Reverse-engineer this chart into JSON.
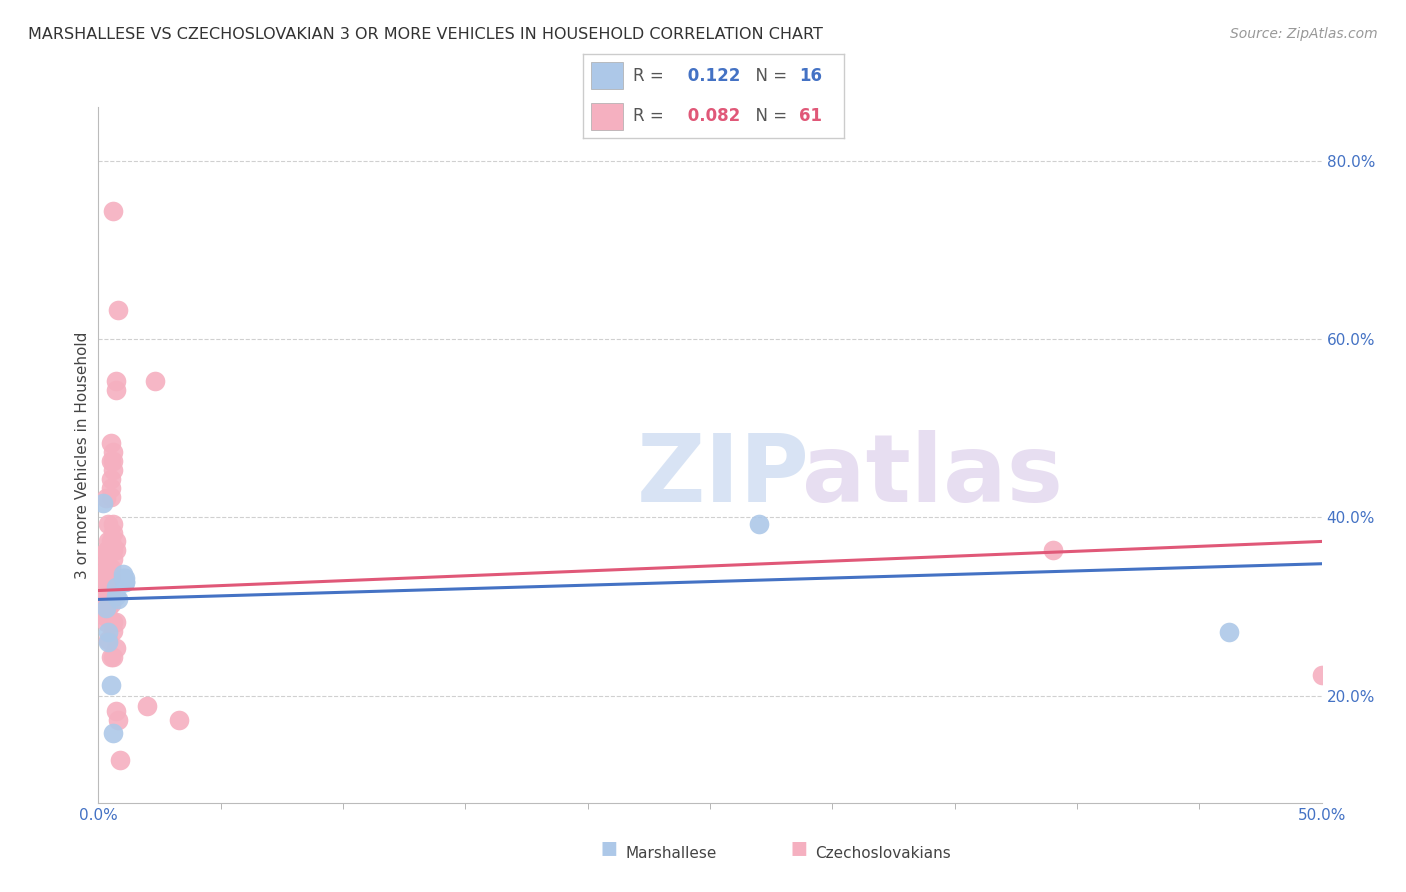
{
  "title": "MARSHALLESE VS CZECHOSLOVAKIAN 3 OR MORE VEHICLES IN HOUSEHOLD CORRELATION CHART",
  "source": "Source: ZipAtlas.com",
  "ylabel": "3 or more Vehicles in Household",
  "xlim": [
    0.0,
    0.5
  ],
  "ylim": [
    0.08,
    0.86
  ],
  "yticks_right": [
    0.2,
    0.4,
    0.6,
    0.8
  ],
  "yticklabels_right": [
    "20.0%",
    "40.0%",
    "60.0%",
    "80.0%"
  ],
  "marshallese_color": "#adc8e8",
  "czechoslovakian_color": "#f5b0c0",
  "marshallese_line_color": "#4472c4",
  "czechoslovakian_line_color": "#e05878",
  "grid_color": "#d0d0d0",
  "bg_color": "#ffffff",
  "legend_r1": "R = ",
  "legend_v1": " 0.122",
  "legend_n1": "  N = ",
  "legend_nv1": "16",
  "legend_r2": "R = ",
  "legend_v2": " 0.082",
  "legend_n2": "  N = ",
  "legend_nv2": "61",
  "marshallese_points": [
    [
      0.002,
      0.416
    ],
    [
      0.003,
      0.298
    ],
    [
      0.004,
      0.272
    ],
    [
      0.004,
      0.26
    ],
    [
      0.005,
      0.212
    ],
    [
      0.006,
      0.158
    ],
    [
      0.007,
      0.322
    ],
    [
      0.007,
      0.312
    ],
    [
      0.008,
      0.308
    ],
    [
      0.01,
      0.337
    ],
    [
      0.01,
      0.332
    ],
    [
      0.011,
      0.332
    ],
    [
      0.011,
      0.327
    ],
    [
      0.011,
      0.327
    ],
    [
      0.27,
      0.392
    ],
    [
      0.462,
      0.272
    ]
  ],
  "czechoslovakian_points": [
    [
      0.002,
      0.358
    ],
    [
      0.002,
      0.338
    ],
    [
      0.002,
      0.333
    ],
    [
      0.002,
      0.313
    ],
    [
      0.002,
      0.303
    ],
    [
      0.003,
      0.422
    ],
    [
      0.003,
      0.362
    ],
    [
      0.003,
      0.348
    ],
    [
      0.003,
      0.338
    ],
    [
      0.003,
      0.323
    ],
    [
      0.003,
      0.313
    ],
    [
      0.003,
      0.293
    ],
    [
      0.003,
      0.288
    ],
    [
      0.003,
      0.283
    ],
    [
      0.004,
      0.393
    ],
    [
      0.004,
      0.373
    ],
    [
      0.004,
      0.363
    ],
    [
      0.004,
      0.358
    ],
    [
      0.004,
      0.343
    ],
    [
      0.004,
      0.333
    ],
    [
      0.004,
      0.313
    ],
    [
      0.004,
      0.308
    ],
    [
      0.004,
      0.298
    ],
    [
      0.004,
      0.263
    ],
    [
      0.005,
      0.483
    ],
    [
      0.005,
      0.463
    ],
    [
      0.005,
      0.443
    ],
    [
      0.005,
      0.433
    ],
    [
      0.005,
      0.423
    ],
    [
      0.005,
      0.373
    ],
    [
      0.005,
      0.343
    ],
    [
      0.005,
      0.333
    ],
    [
      0.005,
      0.313
    ],
    [
      0.005,
      0.303
    ],
    [
      0.005,
      0.243
    ],
    [
      0.006,
      0.743
    ],
    [
      0.006,
      0.473
    ],
    [
      0.006,
      0.463
    ],
    [
      0.006,
      0.453
    ],
    [
      0.006,
      0.393
    ],
    [
      0.006,
      0.383
    ],
    [
      0.006,
      0.363
    ],
    [
      0.006,
      0.353
    ],
    [
      0.006,
      0.283
    ],
    [
      0.006,
      0.273
    ],
    [
      0.006,
      0.243
    ],
    [
      0.007,
      0.553
    ],
    [
      0.007,
      0.543
    ],
    [
      0.007,
      0.373
    ],
    [
      0.007,
      0.363
    ],
    [
      0.007,
      0.283
    ],
    [
      0.007,
      0.253
    ],
    [
      0.007,
      0.183
    ],
    [
      0.008,
      0.633
    ],
    [
      0.008,
      0.173
    ],
    [
      0.009,
      0.128
    ],
    [
      0.02,
      0.188
    ],
    [
      0.023,
      0.553
    ],
    [
      0.033,
      0.173
    ],
    [
      0.39,
      0.363
    ],
    [
      0.5,
      0.223
    ]
  ],
  "marshallese_line": {
    "x0": 0.0,
    "y0": 0.308,
    "x1": 0.5,
    "y1": 0.348
  },
  "czechoslovakian_line": {
    "x0": 0.0,
    "y0": 0.318,
    "x1": 0.5,
    "y1": 0.373
  }
}
